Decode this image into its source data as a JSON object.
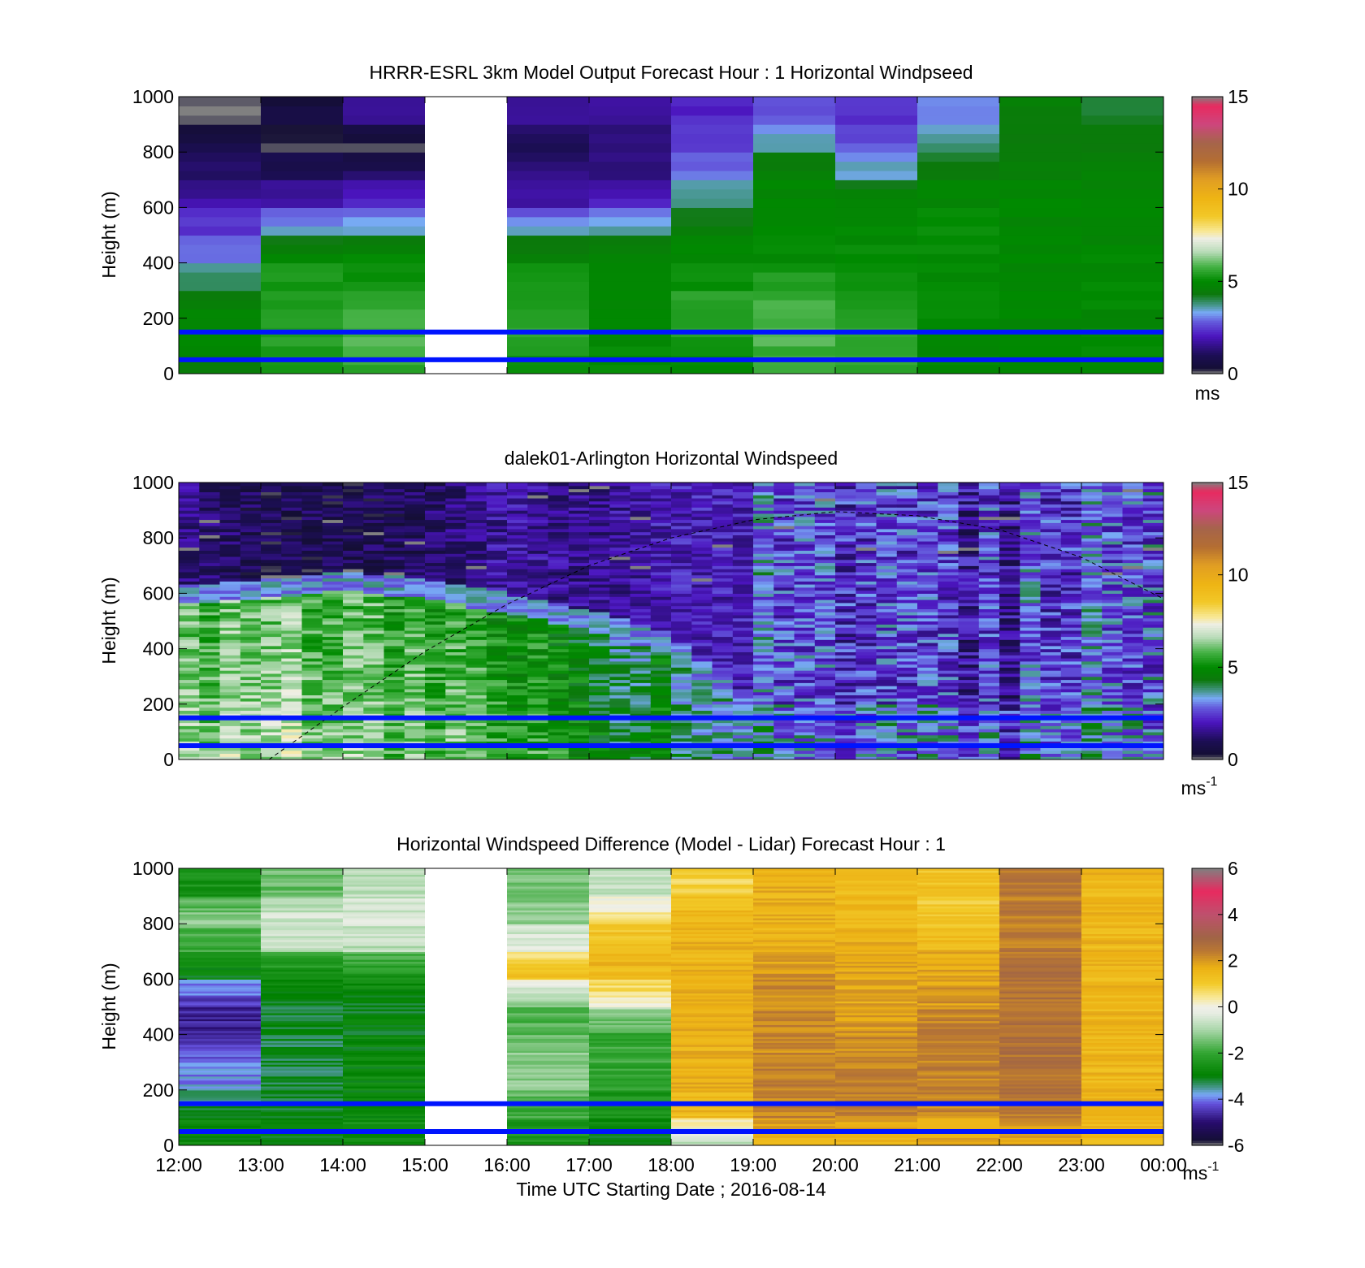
{
  "figure": {
    "xlabel": "Time UTC  Starting Date ; 2016-08-14",
    "x_ticks": [
      "12:00",
      "13:00",
      "14:00",
      "15:00",
      "16:00",
      "17:00",
      "18:00",
      "19:00",
      "20:00",
      "21:00",
      "22:00",
      "23:00",
      "00:00"
    ]
  },
  "chart_data": [
    {
      "type": "heatmap",
      "title": "HRRR-ESRL 3km Model Output   Forecast Hour : 1 Horizontal Windpseed",
      "ylabel": "Height (m)",
      "ylim": [
        0,
        1000
      ],
      "y_ticks": [
        "0",
        "200",
        "400",
        "600",
        "800",
        "1000"
      ],
      "x_categories": [
        "12:00",
        "13:00",
        "14:00",
        "15:00",
        "16:00",
        "17:00",
        "18:00",
        "19:00",
        "20:00",
        "21:00",
        "22:00",
        "23:00"
      ],
      "missing_columns": [
        "15:00"
      ],
      "colorbar": {
        "min": 0,
        "max": 15,
        "ticks": [
          "0",
          "5",
          "10",
          "15"
        ],
        "unit": "ms"
      },
      "reference_lines_m": [
        150,
        50
      ],
      "approx_windspeed_ms_by_height_bands": {
        "heights_m": [
          0,
          100,
          200,
          300,
          400,
          500,
          600,
          700,
          800,
          900
        ],
        "columns": {
          "12:00": [
            4.5,
            5.0,
            4.8,
            4.0,
            3.0,
            2.5,
            1.8,
            1.2,
            0.8,
            0.0
          ],
          "13:00": [
            5.2,
            5.5,
            5.5,
            5.3,
            5.0,
            3.5,
            1.8,
            1.2,
            0.0,
            0.5
          ],
          "14:00": [
            5.5,
            5.8,
            5.8,
            5.3,
            5.0,
            3.5,
            2.2,
            1.2,
            0.0,
            1.5
          ],
          "16:00": [
            5.2,
            5.5,
            5.5,
            5.2,
            4.8,
            3.5,
            1.8,
            1.5,
            0.8,
            1.6
          ],
          "17:00": [
            4.9,
            5.0,
            5.0,
            5.0,
            5.0,
            3.8,
            2.2,
            1.5,
            1.4,
            1.6
          ],
          "18:00": [
            5.0,
            5.3,
            5.5,
            5.2,
            5.0,
            4.5,
            3.8,
            3.0,
            2.4,
            2.2
          ],
          "19:00": [
            5.5,
            5.8,
            5.8,
            5.5,
            5.0,
            4.9,
            4.9,
            4.9,
            3.6,
            2.8
          ],
          "20:00": [
            5.5,
            5.5,
            5.5,
            5.3,
            5.0,
            4.9,
            4.9,
            3.6,
            2.8,
            2.4
          ],
          "21:00": [
            4.9,
            5.0,
            5.0,
            5.0,
            5.0,
            5.0,
            4.9,
            4.5,
            3.8,
            3.2
          ],
          "22:00": [
            4.9,
            4.9,
            4.9,
            4.9,
            4.9,
            4.9,
            4.9,
            4.6,
            4.5,
            4.5
          ],
          "23:00": [
            4.9,
            4.9,
            4.9,
            4.9,
            4.9,
            4.9,
            4.9,
            4.6,
            4.5,
            4.2
          ]
        }
      }
    },
    {
      "type": "heatmap",
      "title": "dalek01-Arlington  Horizontal Windspeed",
      "ylabel": "Height (m)",
      "ylim": [
        0,
        1000
      ],
      "y_ticks": [
        "0",
        "200",
        "400",
        "600",
        "800",
        "1000"
      ],
      "colorbar": {
        "min": 0,
        "max": 15,
        "ticks": [
          "0",
          "5",
          "10",
          "15"
        ],
        "unit": "ms",
        "unit_sup": "-1"
      },
      "reference_lines_m": [
        150,
        50
      ],
      "approx_windspeed_ms_by_time": {
        "time_hours_utc": [
          12,
          13,
          14,
          15,
          16,
          17,
          18,
          19,
          20,
          21,
          22,
          23
        ],
        "near_surface_ms": [
          6.5,
          7.0,
          6.5,
          6.0,
          5.5,
          5.0,
          4.5,
          3.0,
          2.0,
          1.8,
          1.5,
          1.8
        ],
        "aloft_600_1000m_ms": [
          1.5,
          0.8,
          0.8,
          1.0,
          1.8,
          1.5,
          2.0,
          2.0,
          1.8,
          1.5,
          1.2,
          2.0
        ]
      },
      "boundary_layer_top_m": {
        "time_hours_utc": [
          12,
          13,
          14,
          15,
          16,
          17,
          18,
          18.5,
          19
        ],
        "height_m": [
          600,
          620,
          650,
          620,
          570,
          510,
          420,
          300,
          160
        ]
      },
      "dashed_curve": {
        "time_hours_utc": [
          13.1,
          14,
          15,
          16,
          17,
          18,
          19,
          20,
          21,
          22,
          23,
          24
        ],
        "height_m": [
          0,
          190,
          390,
          560,
          700,
          800,
          865,
          895,
          880,
          830,
          730,
          580
        ]
      }
    },
    {
      "type": "heatmap",
      "title": "Horizontal Windspeed Difference (Model - Lidar) Forecast Hour : 1",
      "ylabel": "Height (m)",
      "ylim": [
        0,
        1000
      ],
      "y_ticks": [
        "0",
        "200",
        "400",
        "600",
        "800",
        "1000"
      ],
      "x_categories": [
        "12:00",
        "13:00",
        "14:00",
        "15:00",
        "16:00",
        "17:00",
        "18:00",
        "19:00",
        "20:00",
        "21:00",
        "22:00",
        "23:00"
      ],
      "missing_columns": [
        "15:00"
      ],
      "colorbar": {
        "min": -6,
        "max": 6,
        "ticks": [
          "-6",
          "-4",
          "-2",
          "0",
          "2",
          "4",
          "6"
        ],
        "unit": "ms",
        "unit_sup": "-1"
      },
      "reference_lines_m": [
        150,
        50
      ],
      "approx_difference_ms_by_height_bands": {
        "heights_m": [
          0,
          100,
          200,
          300,
          400,
          500,
          600,
          700,
          800,
          900
        ],
        "columns": {
          "12:00": [
            -2.8,
            -3.0,
            -3.8,
            -4.2,
            -4.8,
            -4.5,
            -3.0,
            -2.0,
            -1.2,
            -2.5
          ],
          "13:00": [
            -3.0,
            -3.0,
            -3.2,
            -3.2,
            -3.2,
            -3.0,
            -2.8,
            -0.8,
            -0.5,
            -1.5
          ],
          "14:00": [
            -2.5,
            -2.8,
            -2.8,
            -2.8,
            -3.0,
            -3.0,
            -2.5,
            -0.8,
            -0.5,
            -0.8
          ],
          "16:00": [
            -2.5,
            -2.0,
            -1.2,
            -1.2,
            -1.8,
            -1.5,
            1.3,
            -0.2,
            -1.2,
            -1.5
          ],
          "17:00": [
            -3.0,
            -2.5,
            -2.2,
            -2.0,
            -2.0,
            0.2,
            1.5,
            1.4,
            0.6,
            -0.8
          ],
          "18:00": [
            -0.8,
            1.5,
            1.6,
            1.6,
            1.6,
            1.6,
            1.6,
            1.6,
            1.6,
            0.8
          ],
          "19:00": [
            1.6,
            2.3,
            2.3,
            2.2,
            2.2,
            2.2,
            2.0,
            1.6,
            1.6,
            1.6
          ],
          "20:00": [
            1.6,
            2.3,
            2.3,
            2.2,
            2.0,
            1.8,
            1.8,
            1.6,
            1.5,
            1.4
          ],
          "21:00": [
            1.6,
            2.2,
            2.3,
            2.3,
            2.3,
            2.0,
            1.8,
            1.5,
            1.0,
            1.2
          ],
          "22:00": [
            1.8,
            2.5,
            2.6,
            2.6,
            2.6,
            2.6,
            2.6,
            2.4,
            2.4,
            2.4
          ],
          "23:00": [
            1.5,
            1.5,
            1.5,
            1.5,
            1.5,
            1.5,
            1.5,
            1.5,
            1.5,
            1.5
          ]
        }
      }
    }
  ]
}
